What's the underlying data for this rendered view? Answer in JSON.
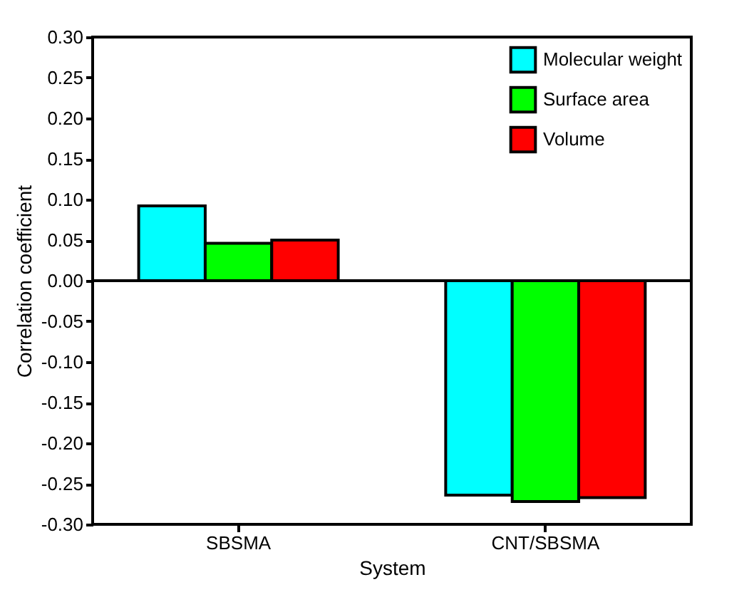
{
  "chart_data": {
    "type": "bar",
    "xlabel": "System",
    "ylabel": "Correlation coefficient",
    "categories": [
      "SBSMA",
      "CNT/SBSMA"
    ],
    "series": [
      {
        "name": "Molecular weight",
        "color": "#00ffff",
        "values": [
          0.092,
          -0.264
        ]
      },
      {
        "name": "Surface area",
        "color": "#00ff00",
        "values": [
          0.046,
          -0.272
        ]
      },
      {
        "name": "Volume",
        "color": "#ff0000",
        "values": [
          0.05,
          -0.267
        ]
      }
    ],
    "ylim": [
      -0.3,
      0.3
    ],
    "yticks": [
      {
        "value": -0.3,
        "label": "-0.30"
      },
      {
        "value": -0.25,
        "label": "-0.25"
      },
      {
        "value": -0.2,
        "label": "-0.20"
      },
      {
        "value": -0.15,
        "label": "-0.15"
      },
      {
        "value": -0.1,
        "label": "-0.10"
      },
      {
        "value": -0.05,
        "label": "-0.05"
      },
      {
        "value": 0,
        "label": "0.00"
      },
      {
        "value": 0.05,
        "label": "0.05"
      },
      {
        "value": 0.1,
        "label": "0.10"
      },
      {
        "value": 0.15,
        "label": "0.15"
      },
      {
        "value": 0.2,
        "label": "0.20"
      },
      {
        "value": 0.25,
        "label": "0.25"
      },
      {
        "value": 0.3,
        "label": "0.30"
      }
    ],
    "ref_lines": [
      {
        "axis": "y",
        "value": 0
      }
    ],
    "grid": false,
    "legend": "top right"
  }
}
